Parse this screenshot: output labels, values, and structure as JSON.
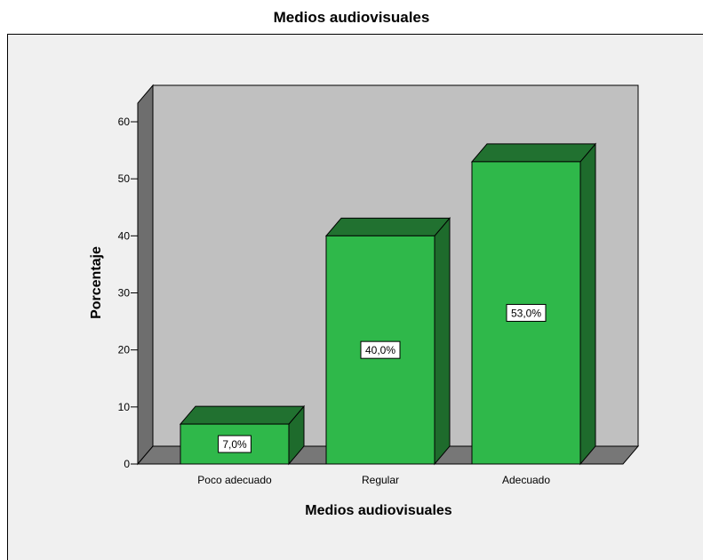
{
  "chart_data": {
    "type": "bar",
    "title": "Medios audiovisuales",
    "xlabel": "Medios audiovisuales",
    "ylabel": "Porcentaje",
    "categories": [
      "Poco adecuado",
      "Regular",
      "Adecuado"
    ],
    "values": [
      7.0,
      40.0,
      53.0
    ],
    "data_labels": [
      "7,0%",
      "40,0%",
      "53,0%"
    ],
    "y_ticks": [
      0,
      10,
      20,
      30,
      40,
      50,
      60
    ],
    "ylim": [
      0,
      65
    ],
    "grid": false,
    "style": "3d",
    "colors": {
      "bar_front": "#2fb84a",
      "bar_side": "#1e6b2c",
      "bar_top": "#217130",
      "plot_back": "#c0c0c0",
      "floor": "#777777",
      "left_wall": "#6e6e6e",
      "frame_background": "#f0f0f0"
    }
  }
}
